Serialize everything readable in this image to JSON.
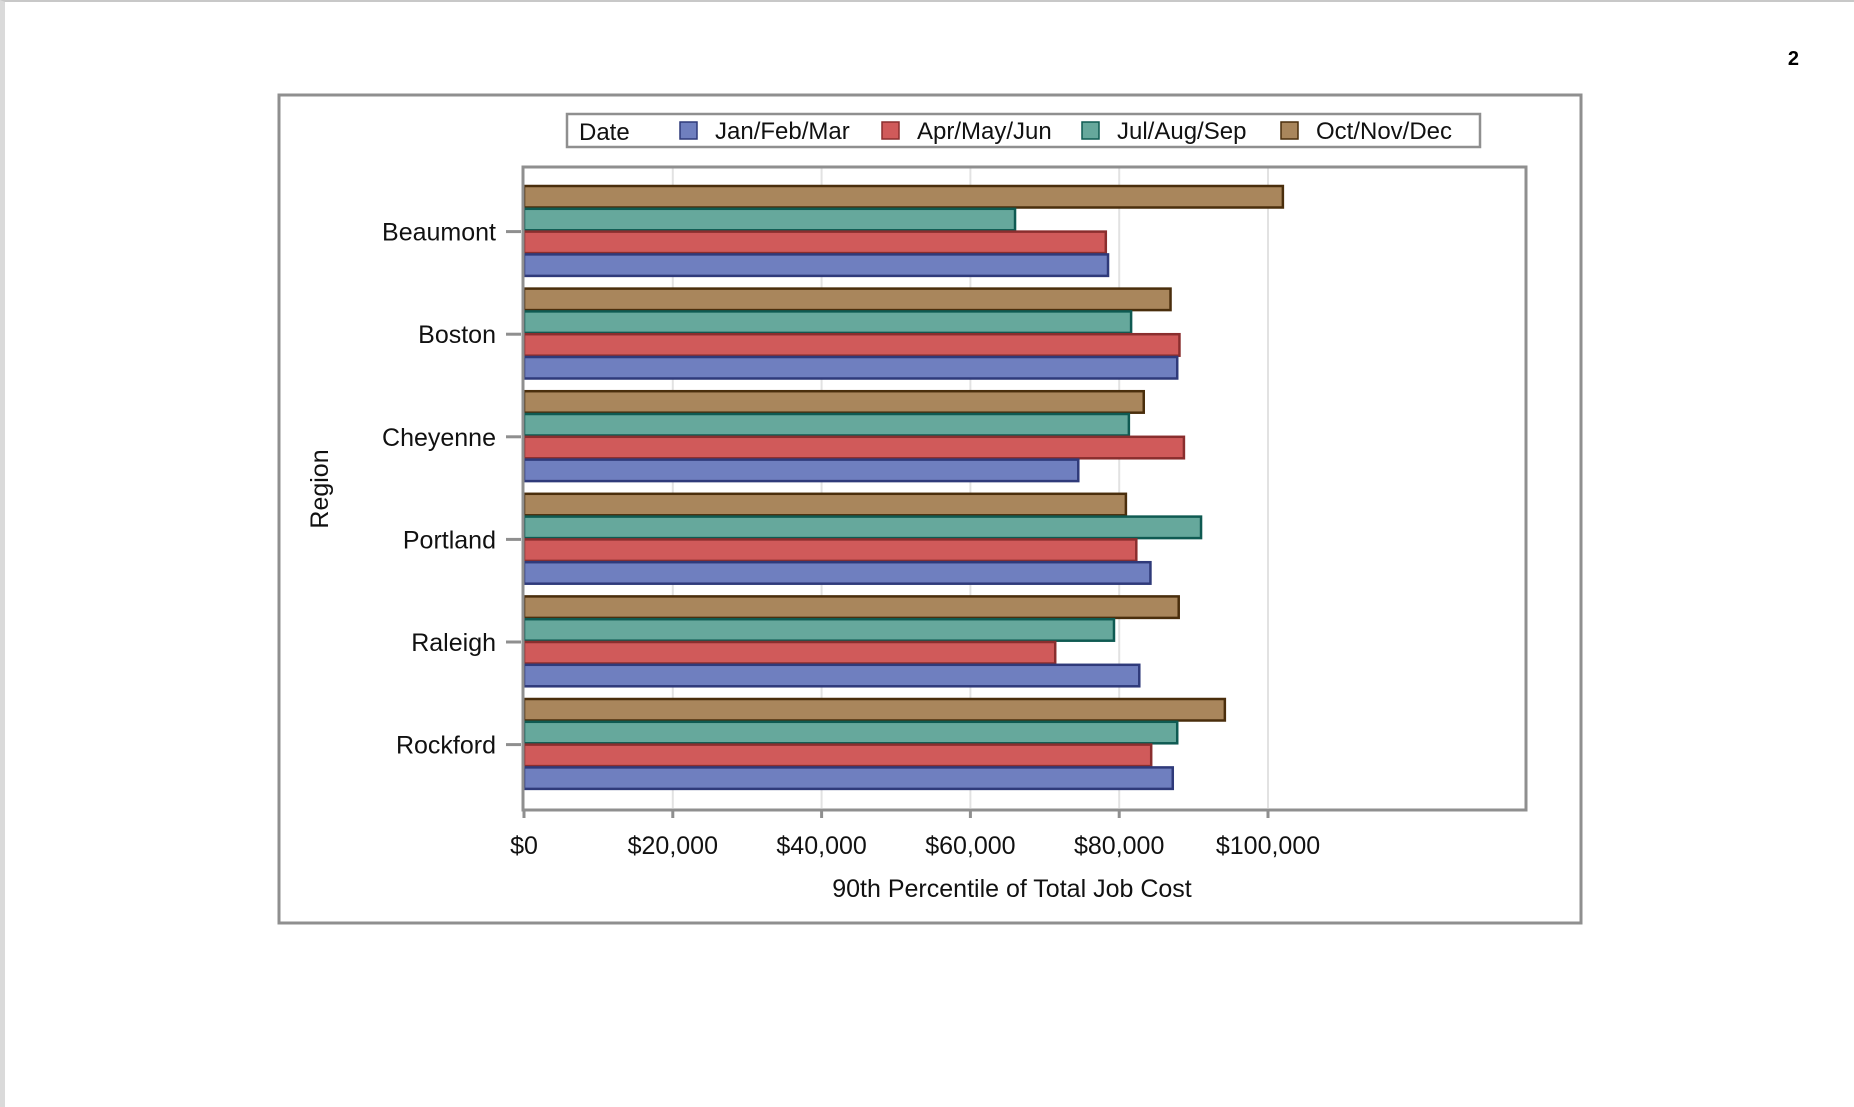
{
  "page": {
    "number": "2"
  },
  "chart_data": {
    "type": "bar",
    "orientation": "horizontal",
    "xlabel": "90th Percentile of Total Job Cost",
    "ylabel": "Region",
    "xlim": [
      0,
      103000
    ],
    "xticks": [
      0,
      20000,
      40000,
      60000,
      80000,
      100000
    ],
    "xtick_labels": [
      "$0",
      "$20,000",
      "$40,000",
      "$60,000",
      "$80,000",
      "$100,000"
    ],
    "grid": true,
    "legend": {
      "title": "Date",
      "placement": "top"
    },
    "categories": [
      "Beaumont",
      "Boston",
      "Cheyenne",
      "Portland",
      "Raleigh",
      "Rockford"
    ],
    "series": [
      {
        "name": "Jan/Feb/Mar",
        "fill": "#6f7fbf",
        "stroke": "#2f3a7a",
        "values": [
          78500,
          87800,
          74500,
          84200,
          82700,
          87200
        ]
      },
      {
        "name": "Apr/May/Jun",
        "fill": "#d05a5a",
        "stroke": "#8a2e2e",
        "values": [
          78200,
          88100,
          88700,
          82300,
          71400,
          84300
        ]
      },
      {
        "name": "Jul/Aug/Sep",
        "fill": "#66a89c",
        "stroke": "#0f5a52",
        "values": [
          66000,
          81600,
          81300,
          91000,
          79300,
          87800
        ]
      },
      {
        "name": "Oct/Nov/Dec",
        "fill": "#a9865c",
        "stroke": "#4a2e0c",
        "values": [
          102000,
          86900,
          83300,
          80900,
          88000,
          94200
        ]
      }
    ]
  }
}
